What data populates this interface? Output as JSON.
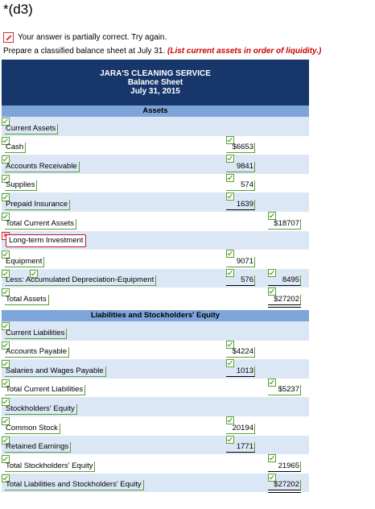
{
  "page": {
    "title": "*(d3)",
    "status": "Your answer is partially correct.  Try again.",
    "instruction_main": "Prepare a classified balance sheet at July 31.",
    "instruction_hint": "(List current assets in order of liquidity.)"
  },
  "sheet": {
    "company": "JARA'S CLEANING SERVICE",
    "statement": "Balance Sheet",
    "date": "July 31, 2015",
    "assets_heading": "Assets",
    "liabilities_heading": "Liabilities and Stockholders' Equity",
    "assets_rows": [
      {
        "label": "Current Assets",
        "col1": "",
        "col2": ""
      },
      {
        "label": "Cash",
        "col1": "$6653",
        "col2": ""
      },
      {
        "label": "Accounts Receivable",
        "col1": "9841",
        "col2": ""
      },
      {
        "label": "Supplies",
        "col1": "574",
        "col2": ""
      },
      {
        "label": "Prepaid Insurance",
        "col1": "1639",
        "col2": ""
      },
      {
        "label": "Total Current Assets",
        "col1": "",
        "col2": "$18707"
      },
      {
        "label": "Long-term Investment",
        "col1": "",
        "col2": "",
        "status": "incorrect"
      },
      {
        "label": "Equipment",
        "col1": "9071",
        "col2": ""
      },
      {
        "label": "Less: Accumulated Depreciation-Equipment",
        "col1": "576",
        "col2": "8495"
      },
      {
        "label": "Total Assets",
        "col1": "",
        "col2": "$27202"
      }
    ],
    "liabilities_rows": [
      {
        "label": "Current Liabilities",
        "col1": "",
        "col2": ""
      },
      {
        "label": "Accounts Payable",
        "col1": "$4224",
        "col2": ""
      },
      {
        "label": "Salaries and Wages Payable",
        "col1": "1013",
        "col2": ""
      },
      {
        "label": "Total Current Liabilities",
        "col1": "",
        "col2": "$5237"
      },
      {
        "label": "Stockholders' Equity",
        "col1": "",
        "col2": ""
      },
      {
        "label": "Common Stock",
        "col1": "20194",
        "col2": ""
      },
      {
        "label": "Retained Earnings",
        "col1": "1771",
        "col2": ""
      },
      {
        "label": "Total Stockholders' Equity",
        "col1": "",
        "col2": "21965"
      },
      {
        "label": "Total Liabilities and Stockholders' Equity",
        "col1": "",
        "col2": "$27202"
      }
    ]
  },
  "colors": {
    "header_bg": "#17376b",
    "section_bg": "#7ea5d9",
    "row_alt_bg": "#dce7f6",
    "hint_red": "#cc0000",
    "correct_green": "#59a034",
    "error_red": "#c0143c"
  }
}
